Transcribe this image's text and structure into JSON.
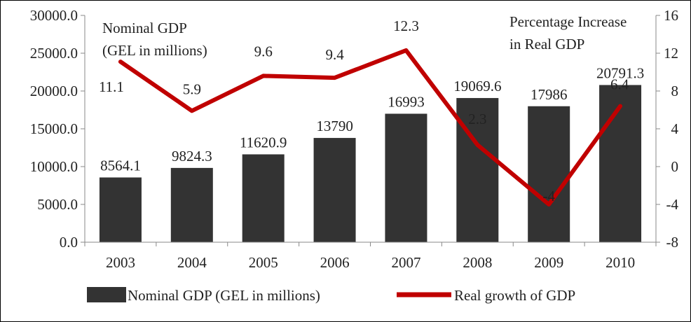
{
  "chart_data": {
    "type": "bar",
    "categories": [
      "2003",
      "2004",
      "2005",
      "2006",
      "2007",
      "2008",
      "2009",
      "2010"
    ],
    "series": [
      {
        "name": "Nominal GDP (GEL in millions)",
        "type": "bar",
        "axis": "left",
        "values": [
          8564.1,
          9824.3,
          11620.9,
          13790,
          16993,
          19069.6,
          17986,
          20791.3
        ],
        "labels": [
          "8564.1",
          "9824.3",
          "11620.9",
          "13790",
          "16993",
          "19069.6",
          "17986",
          "20791.3"
        ],
        "color": "#333333"
      },
      {
        "name": "Real growth of GDP",
        "type": "line",
        "axis": "right",
        "values": [
          11.1,
          5.9,
          9.6,
          9.4,
          12.3,
          2.3,
          -4,
          6.4
        ],
        "labels": [
          "11.1",
          "5.9",
          "9.6",
          "9.4",
          "12.3",
          "2.3",
          "-4",
          "6.4"
        ],
        "color": "#C00000"
      }
    ],
    "left_axis": {
      "title_line1": "Nominal GDP",
      "title_line2": "(GEL in millions)",
      "ylim": [
        0,
        30000
      ],
      "ticks": [
        {
          "v": 0,
          "t": "0.0"
        },
        {
          "v": 5000,
          "t": "5000.0"
        },
        {
          "v": 10000,
          "t": "10000.0"
        },
        {
          "v": 15000,
          "t": "15000.0"
        },
        {
          "v": 20000,
          "t": "20000.0"
        },
        {
          "v": 25000,
          "t": "25000.0"
        },
        {
          "v": 30000,
          "t": "30000.0"
        }
      ]
    },
    "right_axis": {
      "title_line1": "Percentage Increase",
      "title_line2": "in Real GDP",
      "ylim": [
        -8,
        16
      ],
      "ticks": [
        {
          "v": -8,
          "t": "-8"
        },
        {
          "v": -4,
          "t": "-4"
        },
        {
          "v": 0,
          "t": "0"
        },
        {
          "v": 4,
          "t": "4"
        },
        {
          "v": 8,
          "t": "8"
        },
        {
          "v": 12,
          "t": "12"
        },
        {
          "v": 16,
          "t": "16"
        }
      ]
    },
    "legend": {
      "position": "bottom",
      "items": [
        "Nominal GDP (GEL in millions)",
        "Real growth of GDP"
      ]
    },
    "grid": false
  }
}
